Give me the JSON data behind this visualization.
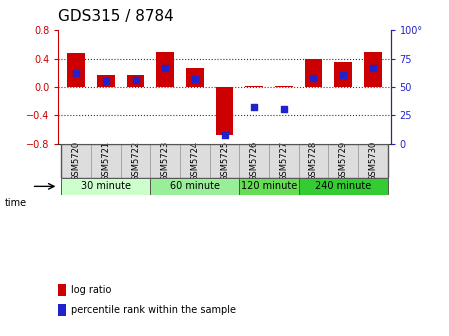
{
  "title": "GDS315 / 8784",
  "samples": [
    "GSM5720",
    "GSM5721",
    "GSM5722",
    "GSM5723",
    "GSM5724",
    "GSM5725",
    "GSM5726",
    "GSM5727",
    "GSM5728",
    "GSM5729",
    "GSM5730"
  ],
  "log_ratio": [
    0.48,
    0.17,
    0.17,
    0.5,
    0.27,
    -0.68,
    0.02,
    0.02,
    0.4,
    0.35,
    0.5
  ],
  "percentile": [
    62,
    55,
    56,
    67,
    57,
    8,
    32,
    31,
    58,
    61,
    67
  ],
  "bar_color": "#cc0000",
  "dot_color": "#2222cc",
  "ylim_left": [
    -0.8,
    0.8
  ],
  "ylim_right": [
    0,
    100
  ],
  "yticks_left": [
    -0.8,
    -0.4,
    0.0,
    0.4,
    0.8
  ],
  "yticks_right": [
    0,
    25,
    50,
    75,
    100
  ],
  "ytick_labels_right": [
    "0",
    "25",
    "50",
    "75",
    "100°"
  ],
  "hlines": [
    0.4,
    0.0,
    -0.4
  ],
  "hline_colors": [
    "#333333",
    "#cc0000",
    "#333333"
  ],
  "hline_styles": [
    "dotted",
    "dotted",
    "dotted"
  ],
  "groups": [
    {
      "label": "30 minute",
      "start": 0,
      "end": 2,
      "color": "#ccffcc"
    },
    {
      "label": "60 minute",
      "start": 3,
      "end": 5,
      "color": "#99ee99"
    },
    {
      "label": "120 minute",
      "start": 6,
      "end": 7,
      "color": "#66dd55"
    },
    {
      "label": "240 minute",
      "start": 8,
      "end": 10,
      "color": "#33cc33"
    }
  ],
  "time_label": "time",
  "legend_bar_label": "log ratio",
  "legend_dot_label": "percentile rank within the sample",
  "background_color": "#ffffff",
  "plot_bg_color": "#ffffff",
  "tick_label_fontsize": 7,
  "title_fontsize": 11,
  "bar_width": 0.6,
  "dot_size": 20
}
